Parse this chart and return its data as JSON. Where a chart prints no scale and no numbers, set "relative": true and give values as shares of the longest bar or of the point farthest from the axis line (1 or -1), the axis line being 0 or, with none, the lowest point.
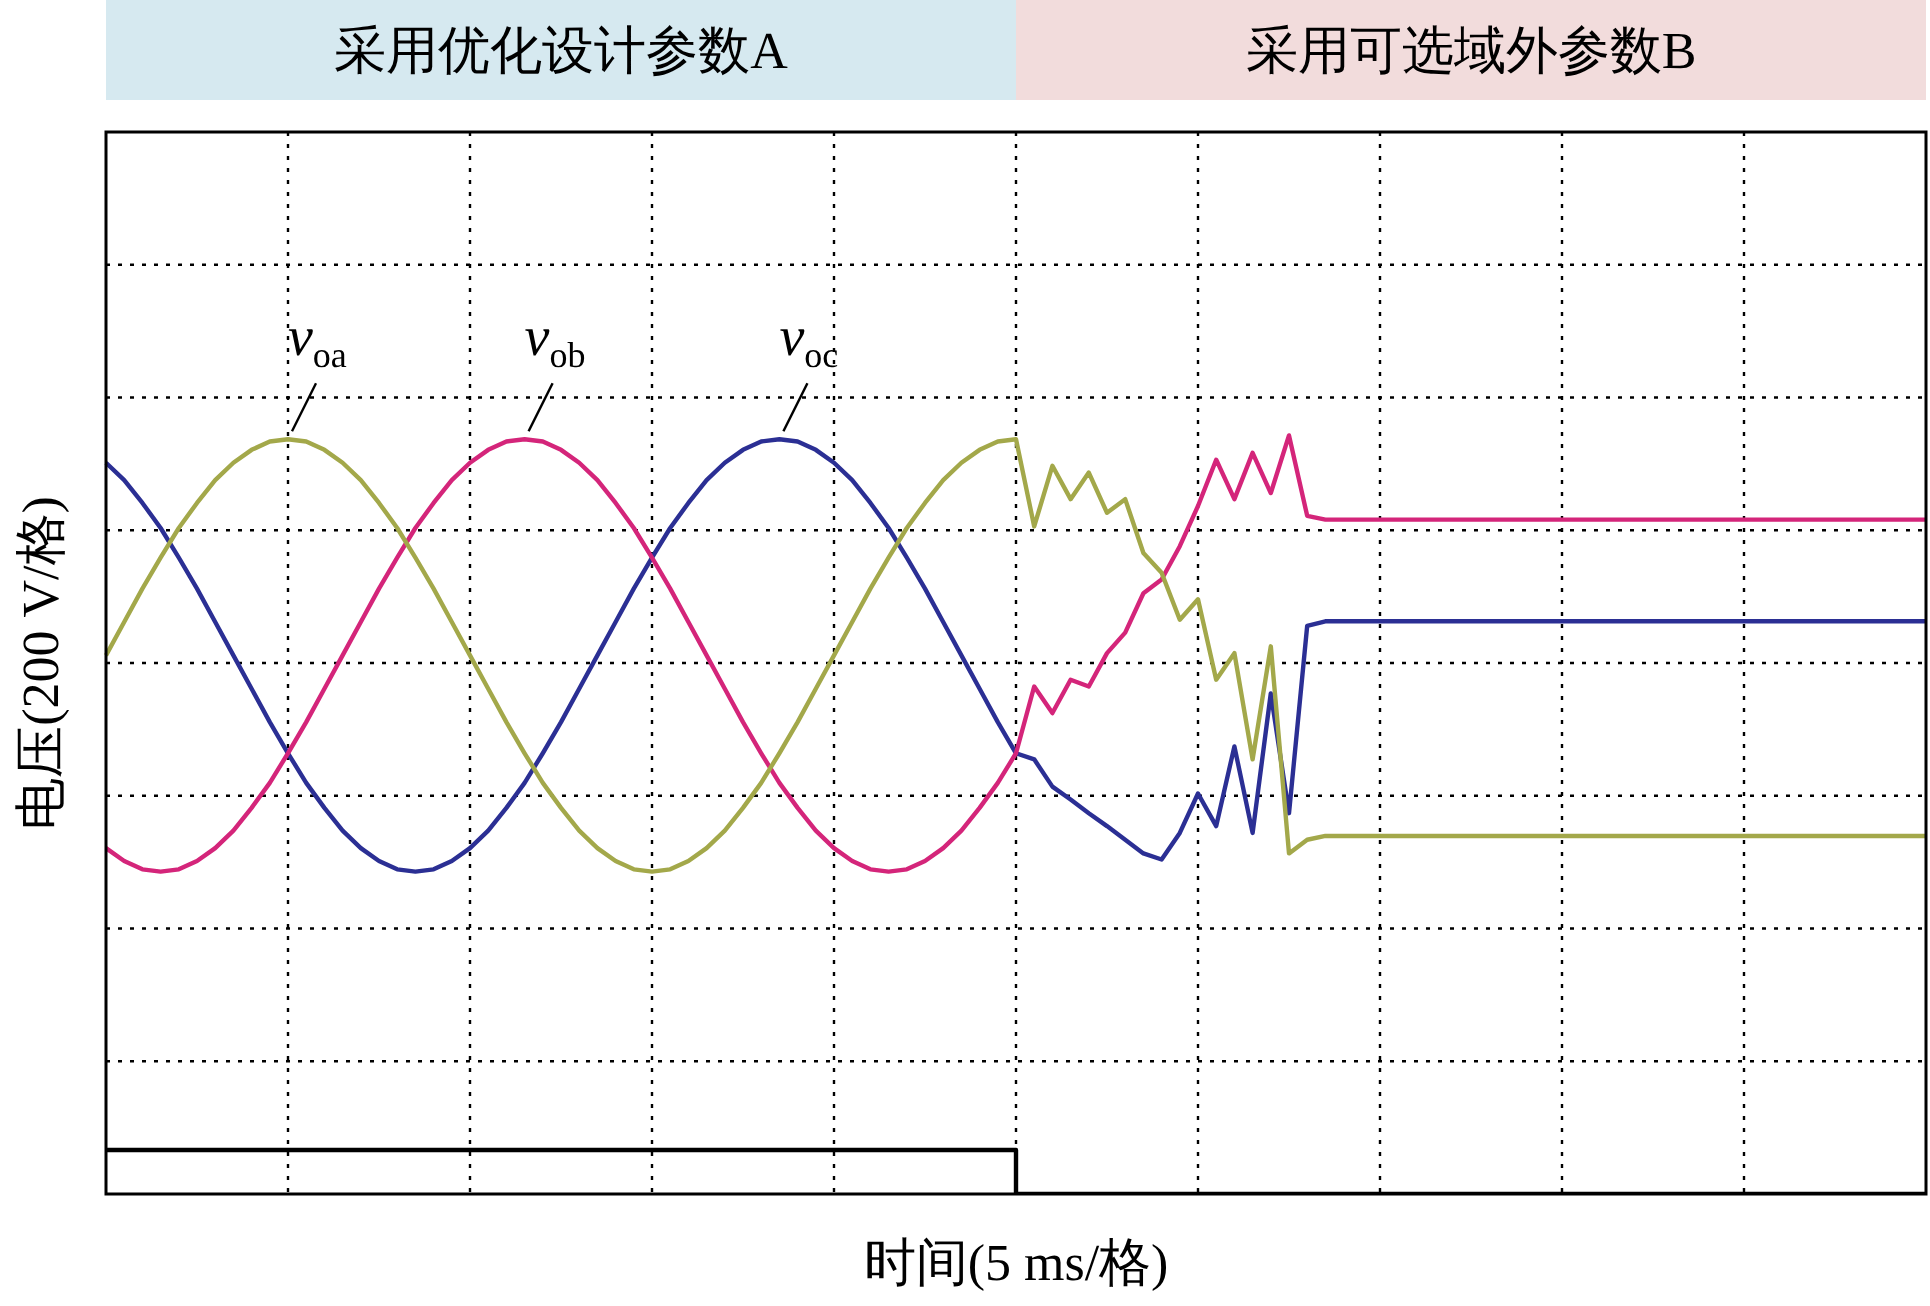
{
  "chart_data": {
    "type": "line",
    "xlabel": "时间(5 ms/格)",
    "ylabel": "电压(200 V/格)",
    "annotations": [
      "采用优化设计参数A",
      "采用可选域外参数B"
    ],
    "relative": true,
    "grid": true,
    "legend": false,
    "marker": "none",
    "categories": [
      null,
      null,
      null,
      null,
      null,
      null,
      null,
      null,
      null,
      null,
      null,
      null,
      null,
      null,
      null,
      null,
      null,
      null,
      null,
      null,
      null,
      null,
      null,
      null,
      null,
      null,
      null,
      null,
      null,
      null,
      null,
      null,
      null,
      null,
      null,
      null,
      null,
      null,
      null,
      null,
      null,
      null,
      null,
      null,
      null,
      null,
      null,
      null,
      null,
      null,
      null,
      null,
      null,
      null,
      null,
      null,
      null,
      null,
      null,
      null,
      null,
      null,
      null,
      null,
      null,
      null,
      null,
      null,
      null,
      null,
      null,
      null,
      null,
      null,
      null,
      null,
      null,
      null,
      null,
      null,
      null,
      null,
      null,
      null,
      null,
      null,
      null,
      null,
      null,
      null,
      null,
      null,
      null,
      null,
      null,
      null,
      null,
      null,
      null,
      null,
      null
    ],
    "series": [
      {
        "name": "v$_{oa}$",
        "color": "#a3a84a",
        "values": [
          0.71,
          0.754,
          0.798,
          0.839,
          0.878,
          0.911,
          0.941,
          0.964,
          0.981,
          0.992,
          0.995,
          0.992,
          0.981,
          0.964,
          0.941,
          0.911,
          0.878,
          0.839,
          0.798,
          0.754,
          0.71,
          0.666,
          0.622,
          0.581,
          0.542,
          0.509,
          0.479,
          0.456,
          0.439,
          0.428,
          0.425,
          0.428,
          0.439,
          0.456,
          0.479,
          0.509,
          0.542,
          0.581,
          0.622,
          0.666,
          0.71,
          0.754,
          0.798,
          0.839,
          0.878,
          0.911,
          0.941,
          0.964,
          0.981,
          0.992,
          0.995,
          0.88,
          0.96,
          0.916,
          0.951,
          0.898,
          0.916,
          0.845,
          0.819,
          0.757,
          0.784,
          0.678,
          0.713,
          0.573,
          0.722,
          0.449,
          0.467,
          0.472,
          0.472,
          0.472,
          0.472,
          0.472,
          0.472,
          0.472,
          0.472,
          0.472,
          0.472,
          0.472,
          0.472,
          0.472,
          0.472,
          0.472,
          0.472,
          0.472,
          0.472,
          0.472,
          0.472,
          0.472,
          0.472,
          0.472,
          0.472,
          0.472,
          0.472,
          0.472,
          0.472,
          0.472,
          0.472,
          0.472,
          0.472,
          0.472,
          0.472
        ]
      },
      {
        "name": "v$_{ob}$",
        "color": "#d4257a",
        "values": [
          0.456,
          0.439,
          0.428,
          0.425,
          0.428,
          0.439,
          0.456,
          0.479,
          0.509,
          0.542,
          0.581,
          0.622,
          0.666,
          0.71,
          0.754,
          0.798,
          0.839,
          0.878,
          0.911,
          0.941,
          0.964,
          0.981,
          0.992,
          0.995,
          0.992,
          0.981,
          0.964,
          0.941,
          0.911,
          0.878,
          0.839,
          0.798,
          0.754,
          0.71,
          0.666,
          0.622,
          0.581,
          0.542,
          0.509,
          0.479,
          0.456,
          0.439,
          0.428,
          0.425,
          0.428,
          0.439,
          0.456,
          0.479,
          0.509,
          0.542,
          0.581,
          0.669,
          0.634,
          0.678,
          0.669,
          0.713,
          0.74,
          0.792,
          0.81,
          0.854,
          0.907,
          0.968,
          0.916,
          0.977,
          0.924,
          1.0,
          0.894,
          0.889,
          0.889,
          0.889,
          0.889,
          0.889,
          0.889,
          0.889,
          0.889,
          0.889,
          0.889,
          0.889,
          0.889,
          0.889,
          0.889,
          0.889,
          0.889,
          0.889,
          0.889,
          0.889,
          0.889,
          0.889,
          0.889,
          0.889,
          0.889,
          0.889,
          0.889,
          0.889,
          0.889,
          0.889,
          0.889,
          0.889,
          0.889,
          0.889,
          0.889
        ]
      },
      {
        "name": "v$_{oc}$",
        "color": "#2b2f94",
        "values": [
          0.964,
          0.941,
          0.911,
          0.878,
          0.839,
          0.798,
          0.754,
          0.71,
          0.666,
          0.622,
          0.581,
          0.542,
          0.509,
          0.479,
          0.456,
          0.439,
          0.428,
          0.425,
          0.428,
          0.439,
          0.456,
          0.479,
          0.509,
          0.542,
          0.581,
          0.622,
          0.666,
          0.71,
          0.754,
          0.798,
          0.839,
          0.878,
          0.911,
          0.941,
          0.964,
          0.981,
          0.992,
          0.995,
          0.992,
          0.981,
          0.964,
          0.941,
          0.911,
          0.878,
          0.839,
          0.798,
          0.754,
          0.71,
          0.666,
          0.622,
          0.581,
          0.573,
          0.537,
          0.52,
          0.502,
          0.485,
          0.467,
          0.449,
          0.441,
          0.476,
          0.528,
          0.485,
          0.59,
          0.476,
          0.66,
          0.502,
          0.749,
          0.755,
          0.755,
          0.755,
          0.755,
          0.755,
          0.755,
          0.755,
          0.755,
          0.755,
          0.755,
          0.755,
          0.755,
          0.755,
          0.755,
          0.755,
          0.755,
          0.755,
          0.755,
          0.755,
          0.755,
          0.755,
          0.755,
          0.755,
          0.755,
          0.755,
          0.755,
          0.755,
          0.755,
          0.755,
          0.755,
          0.755,
          0.755,
          0.755,
          0.755
        ]
      },
      {
        "type": "step",
        "color": "#000000",
        "values": [
          0.058,
          0.058,
          0.058,
          0.058,
          0.058,
          0.058,
          0.058,
          0.058,
          0.058,
          0.058,
          0.058,
          0.058,
          0.058,
          0.058,
          0.058,
          0.058,
          0.058,
          0.058,
          0.058,
          0.058,
          0.058,
          0.058,
          0.058,
          0.058,
          0.058,
          0.058,
          0.058,
          0.058,
          0.058,
          0.058,
          0.058,
          0.058,
          0.058,
          0.058,
          0.058,
          0.058,
          0.058,
          0.058,
          0.058,
          0.058,
          0.058,
          0.058,
          0.058,
          0.058,
          0.058,
          0.058,
          0.058,
          0.058,
          0.058,
          0.058,
          0,
          0,
          0,
          0,
          0,
          0,
          0,
          0,
          0,
          0,
          0,
          0,
          0,
          0,
          0,
          0,
          0,
          0,
          0,
          0,
          0,
          0,
          0,
          0,
          0,
          0,
          0,
          0,
          0,
          0,
          0,
          0,
          0,
          0,
          0,
          0,
          0,
          0,
          0,
          0,
          0,
          0,
          0,
          0,
          0,
          0,
          0,
          0,
          0,
          0,
          0
        ]
      }
    ]
  }
}
